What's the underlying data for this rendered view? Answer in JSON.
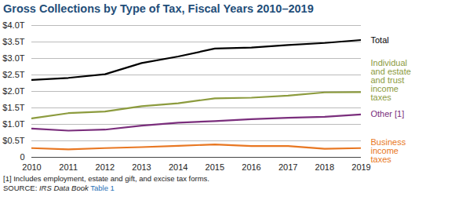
{
  "chart_data": {
    "type": "line",
    "title": "Gross Collections by Type of Tax, Fiscal Years 2010–2019",
    "x": [
      2010,
      2011,
      2012,
      2013,
      2014,
      2015,
      2016,
      2017,
      2018,
      2019
    ],
    "xlim": [
      2010,
      2019
    ],
    "xticks": [
      2010,
      2011,
      2012,
      2013,
      2014,
      2015,
      2016,
      2017,
      2018,
      2019
    ],
    "ylim": [
      0,
      4.0
    ],
    "yticks": [
      0,
      {
        "value": 0.5,
        "label": "$0.5T"
      },
      {
        "value": 1.0,
        "label": "$1.0T"
      },
      {
        "value": 1.5,
        "label": "$1.5T"
      },
      {
        "value": 2.0,
        "label": "$2.0T"
      },
      {
        "value": 2.5,
        "label": "$2.5T"
      },
      {
        "value": 3.0,
        "label": "$3.0T"
      },
      {
        "value": 3.5,
        "label": "$3.5T"
      },
      {
        "value": 4.0,
        "label": "$4.0T"
      }
    ],
    "grid": true,
    "series": [
      {
        "name": "Total",
        "color": "#000000",
        "values": [
          2.35,
          2.41,
          2.52,
          2.86,
          3.06,
          3.3,
          3.33,
          3.41,
          3.47,
          3.56
        ]
      },
      {
        "name": "Individual and estate and trust income taxes",
        "color": "#8c9b3e",
        "values": [
          1.18,
          1.34,
          1.39,
          1.55,
          1.64,
          1.79,
          1.81,
          1.87,
          1.97,
          1.98
        ]
      },
      {
        "name": "Other [1]",
        "color": "#7a2e7c",
        "values": [
          0.87,
          0.81,
          0.84,
          0.96,
          1.05,
          1.1,
          1.16,
          1.2,
          1.23,
          1.3
        ]
      },
      {
        "name": "Business income taxes",
        "color": "#e87722",
        "values": [
          0.28,
          0.24,
          0.28,
          0.31,
          0.35,
          0.39,
          0.34,
          0.34,
          0.26,
          0.28
        ]
      }
    ],
    "footnote": "[1] Includes employment, estate and gift, and excise tax forms.",
    "source": {
      "label": "SOURCE:",
      "publication": "IRS Data Book",
      "table": "Table 1"
    }
  }
}
